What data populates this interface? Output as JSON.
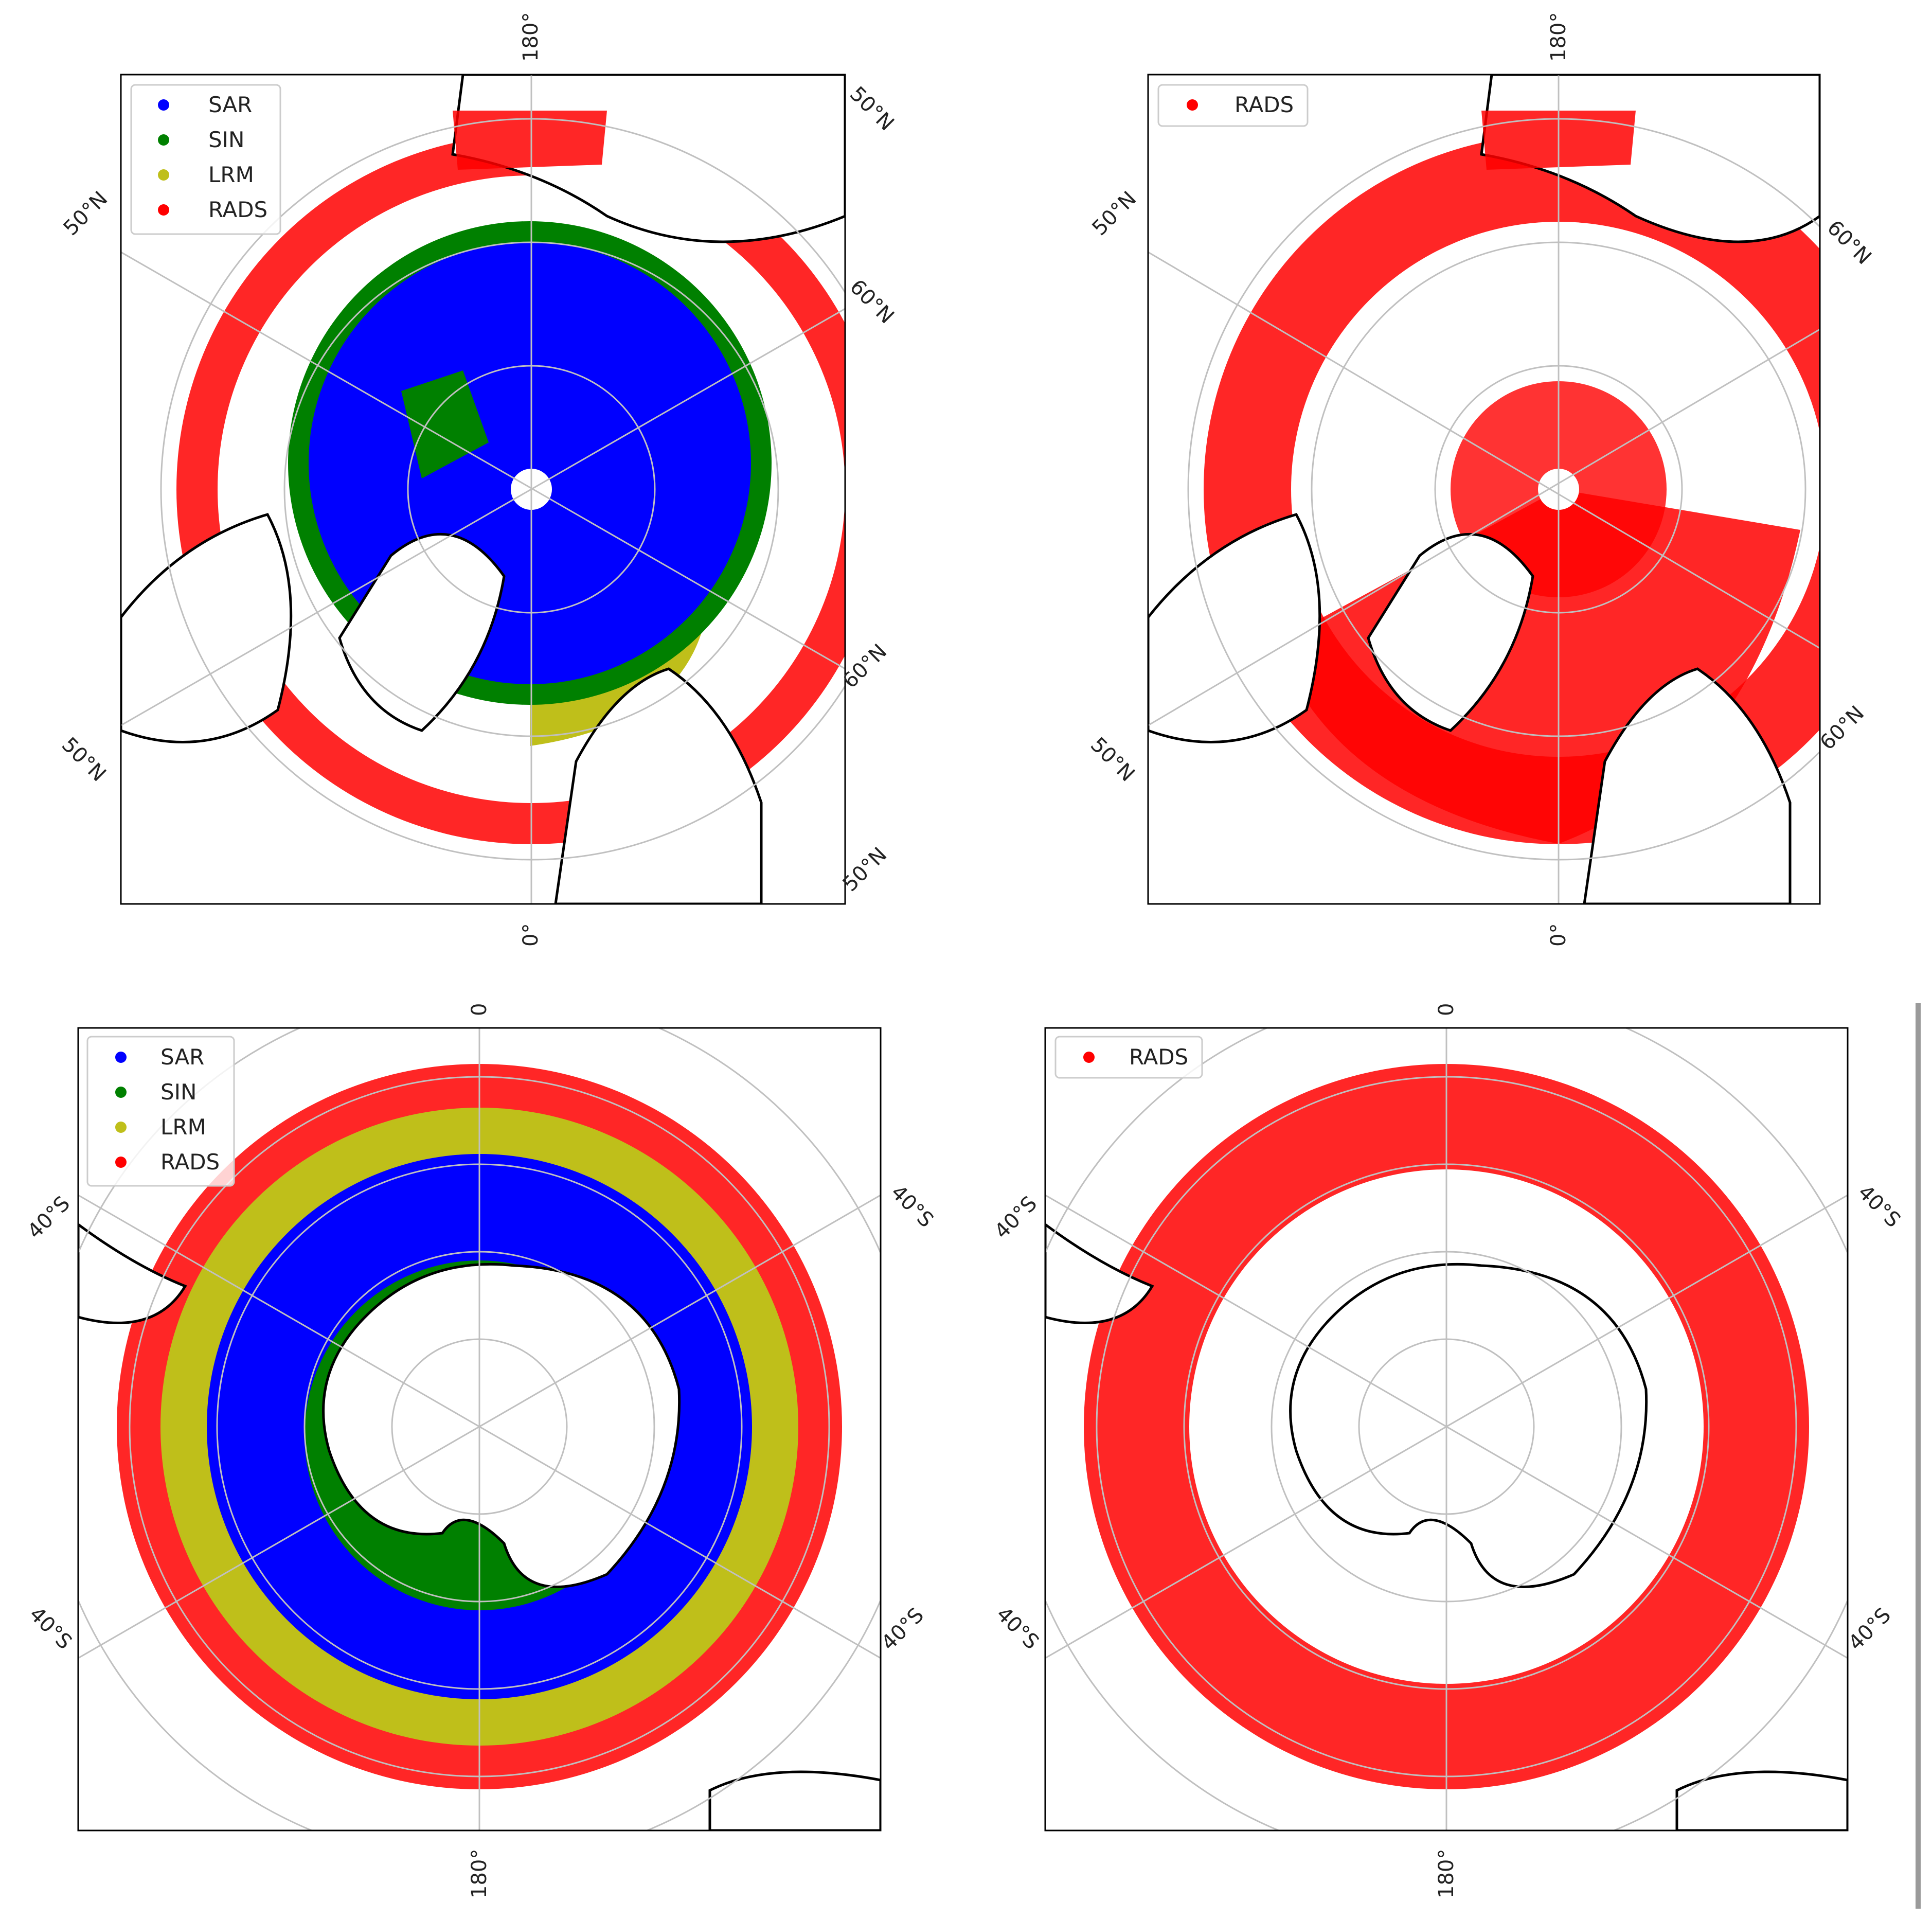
{
  "colors": {
    "SAR": "#0000ff",
    "SIN": "#008000",
    "LRM": "#bfbf1a",
    "RADS": "#ff0000",
    "coast": "#000000",
    "grid": "#c0c0c0",
    "frame": "#000000"
  },
  "panels": [
    {
      "id": "north-modes",
      "hemisphere": "north",
      "legend": [
        "SAR",
        "SIN",
        "LRM",
        "RADS"
      ],
      "top_label": "180°",
      "bottom_label": "0°",
      "lat_labels": [
        "50°N",
        "50°N",
        "60°N",
        "60°N",
        "50°N",
        "50°N"
      ]
    },
    {
      "id": "north-rads",
      "hemisphere": "north",
      "legend": [
        "RADS"
      ],
      "top_label": "180°",
      "bottom_label": "0°",
      "lat_labels": [
        "50°N",
        "60°N",
        "50°N",
        "60°N"
      ]
    },
    {
      "id": "south-modes",
      "hemisphere": "south",
      "legend": [
        "SAR",
        "SIN",
        "LRM",
        "RADS"
      ],
      "top_label": "0",
      "bottom_label": "180°",
      "lat_labels": [
        "40°S",
        "40°S",
        "40°S",
        "40°S"
      ]
    },
    {
      "id": "south-rads",
      "hemisphere": "south",
      "legend": [
        "RADS"
      ],
      "top_label": "0",
      "bottom_label": "180°",
      "lat_labels": [
        "40°S",
        "40°S",
        "40°S",
        "40°S"
      ]
    }
  ]
}
